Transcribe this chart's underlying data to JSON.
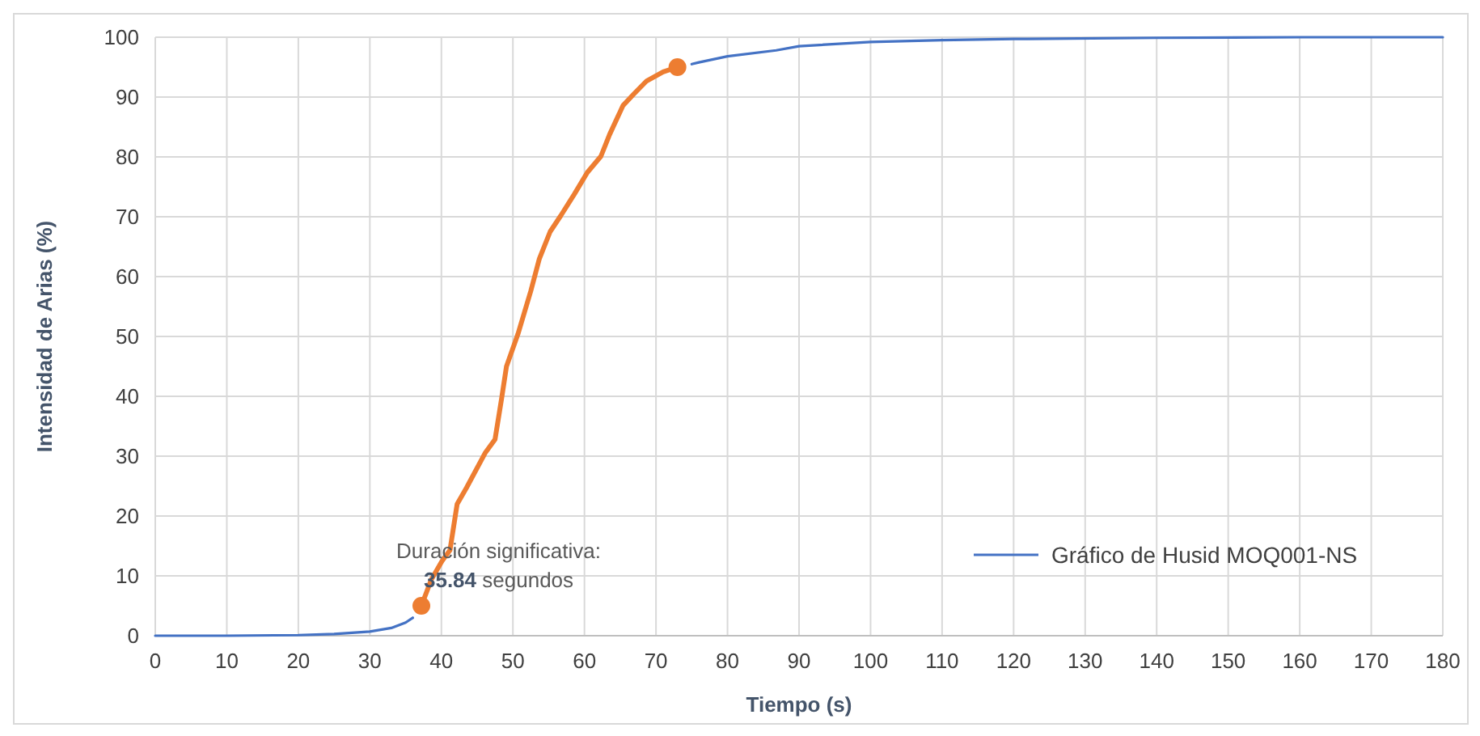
{
  "chart_data": {
    "type": "line",
    "xlabel": "Tiempo (s)",
    "ylabel": "Intensidad de Arias (%)",
    "xlim": [
      0,
      180
    ],
    "xticks": [
      0,
      10,
      20,
      30,
      40,
      50,
      60,
      70,
      80,
      90,
      100,
      110,
      120,
      130,
      140,
      150,
      160,
      170,
      180
    ],
    "ylim": [
      0,
      100
    ],
    "yticks": [
      0,
      10,
      20,
      30,
      40,
      50,
      60,
      70,
      80,
      90,
      100
    ],
    "grid": true,
    "legend": "bottom right",
    "annotations": [
      "Duración significativa:\n35.84 segundos"
    ],
    "series": [
      {
        "name": "Gráfico de Husid MOQ001-NS",
        "color": "#4472c4",
        "marker": "none",
        "x": [
          0,
          10,
          20,
          25,
          30,
          33,
          35,
          36,
          55,
          75,
          76,
          80,
          86.8,
          90,
          100,
          110,
          120,
          140,
          160,
          180
        ],
        "values": [
          0,
          0,
          0.1,
          0.3,
          0.7,
          1.3,
          2.2,
          3,
          null,
          95.5,
          95.8,
          96.8,
          97.8,
          98.5,
          99.2,
          99.5,
          99.7,
          99.9,
          100,
          100
        ]
      },
      {
        "color": "#ed7d31",
        "marker": "none",
        "x": [
          37.2,
          38.6,
          40.1,
          41.2,
          42.2,
          43.5,
          46.1,
          47.5,
          48.4,
          49.1,
          50.7,
          52.5,
          53.7,
          55.2,
          56.7,
          58.6,
          60.4,
          62.3,
          63.5,
          65.4,
          66.9,
          68.7,
          71,
          73
        ],
        "values": [
          5,
          9.4,
          12.5,
          14.3,
          22,
          24.7,
          30.5,
          32.8,
          39.5,
          45,
          50.4,
          57.6,
          63,
          67.5,
          70.2,
          73.8,
          77.4,
          80.1,
          83.7,
          88.6,
          90.5,
          92.7,
          94.2,
          95
        ]
      },
      {
        "type": "scatter",
        "color": "#ed7d31",
        "marker": "circle",
        "x": [
          37.2,
          73
        ],
        "values": [
          5,
          95
        ]
      }
    ]
  }
}
